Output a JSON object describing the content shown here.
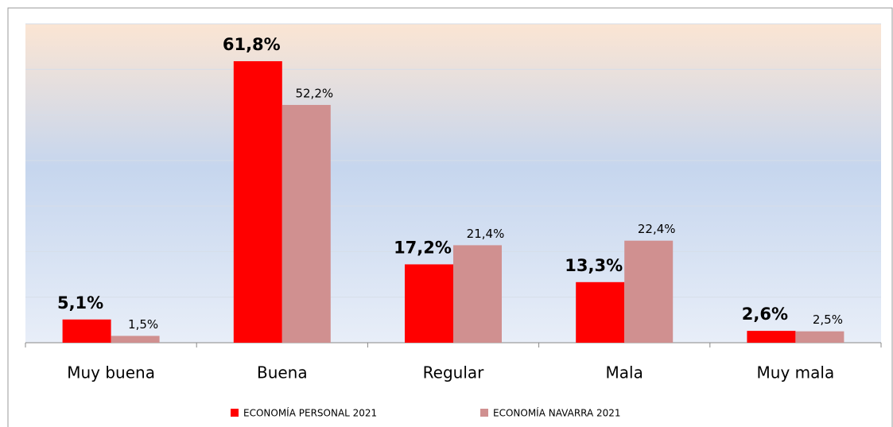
{
  "chart_data": {
    "type": "bar",
    "categories": [
      "Muy buena",
      "Buena",
      "Regular",
      "Mala",
      "Muy mala"
    ],
    "series": [
      {
        "name": "ECONOMÍA PERSONAL  2021",
        "color": "#ff0000",
        "values": [
          5.1,
          61.8,
          17.2,
          13.3,
          2.6
        ],
        "value_labels": [
          "5,1%",
          "61,8%",
          "17,2%",
          "13,3%",
          "2,6%"
        ]
      },
      {
        "name": "ECONOMÍA NAVARRA 2021",
        "color": "#d09090",
        "values": [
          1.5,
          52.2,
          21.4,
          22.4,
          2.5
        ],
        "value_labels": [
          "1,5%",
          "52,2%",
          "21,4%",
          "22,4%",
          "2,5%"
        ]
      }
    ],
    "ylim": [
      0,
      70
    ],
    "yticks": [
      0,
      10,
      20,
      30,
      40,
      50,
      60,
      70
    ],
    "grid": true,
    "legend": "bottom"
  }
}
